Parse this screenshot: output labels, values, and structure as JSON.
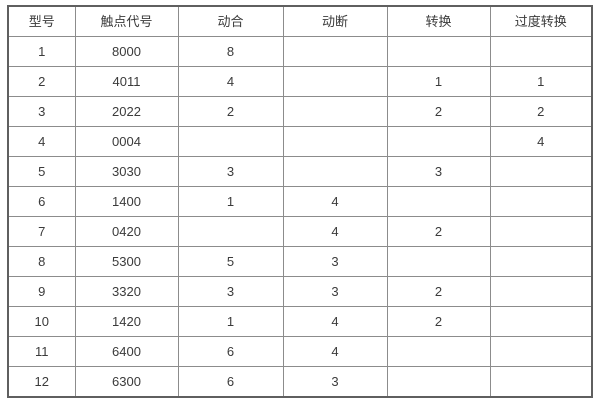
{
  "table": {
    "title": "contact-configuration-table",
    "columns": [
      {
        "label": "型号"
      },
      {
        "label": "触点代号"
      },
      {
        "label": "动合"
      },
      {
        "label": "动断"
      },
      {
        "label": "转换"
      },
      {
        "label": "过度转换"
      }
    ],
    "rows": [
      [
        "1",
        "8000",
        "8",
        "",
        "",
        ""
      ],
      [
        "2",
        "4011",
        "4",
        "",
        "1",
        "1"
      ],
      [
        "3",
        "2022",
        "2",
        "",
        "2",
        "2"
      ],
      [
        "4",
        "0004",
        "",
        "",
        "",
        "4"
      ],
      [
        "5",
        "3030",
        "3",
        "",
        "3",
        ""
      ],
      [
        "6",
        "1400",
        "1",
        "4",
        "",
        ""
      ],
      [
        "7",
        "0420",
        "",
        "4",
        "2",
        ""
      ],
      [
        "8",
        "5300",
        "5",
        "3",
        "",
        ""
      ],
      [
        "9",
        "3320",
        "3",
        "3",
        "2",
        ""
      ],
      [
        "10",
        "1420",
        "1",
        "4",
        "2",
        ""
      ],
      [
        "11",
        "6400",
        "6",
        "4",
        "",
        ""
      ],
      [
        "12",
        "6300",
        "6",
        "3",
        "",
        ""
      ]
    ],
    "colors": {
      "background": "#ffffff",
      "border_outer": "#5f5f5f",
      "border_inner": "#8c8c8c",
      "text": "#3b3b3b"
    }
  }
}
